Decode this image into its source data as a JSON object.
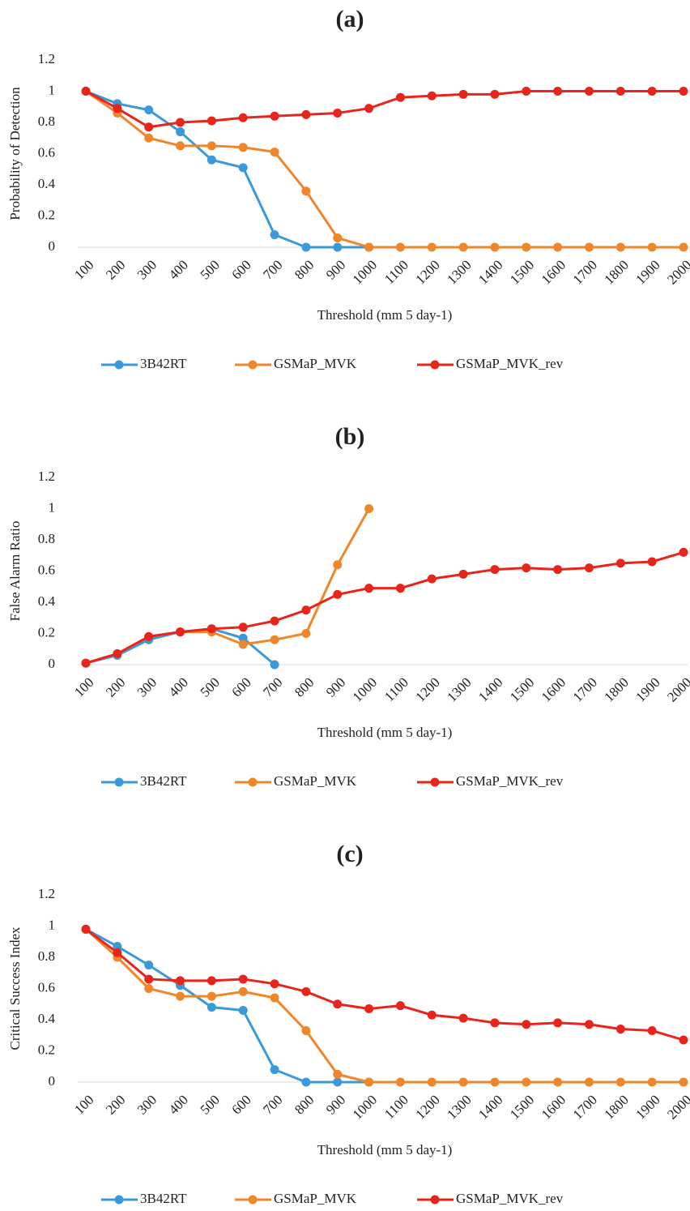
{
  "chart_data": [
    {
      "type": "line",
      "title": "(a)",
      "x_label": "Threshold (mm 5 day-1)",
      "y_label": "Probability of Detection",
      "categories": [
        "100",
        "200",
        "300",
        "400",
        "500",
        "600",
        "700",
        "800",
        "900",
        "1000",
        "1100",
        "1200",
        "1300",
        "1400",
        "1500",
        "1600",
        "1700",
        "1800",
        "1900",
        "2000"
      ],
      "ylim": [
        0,
        1.2
      ],
      "yticks": [
        0,
        0.2,
        0.4,
        0.6,
        0.8,
        1,
        1.2
      ],
      "grid": false,
      "series": [
        {
          "name": "3B42RT",
          "color": "#3a9ad9",
          "values": [
            1,
            0.92,
            0.88,
            0.74,
            0.56,
            0.51,
            0.08,
            0,
            0,
            0,
            null,
            null,
            null,
            null,
            null,
            null,
            null,
            null,
            null,
            null
          ]
        },
        {
          "name": "GSMaP_MVK",
          "color": "#f0862a",
          "values": [
            1,
            0.86,
            0.7,
            0.65,
            0.65,
            0.64,
            0.61,
            0.36,
            0.06,
            0,
            0,
            0,
            0,
            0,
            0,
            0,
            0,
            0,
            0,
            0
          ]
        },
        {
          "name": "GSMaP_MVK_rev",
          "color": "#e8251b",
          "values": [
            1,
            0.89,
            0.77,
            0.8,
            0.81,
            0.83,
            0.84,
            0.85,
            0.86,
            0.89,
            0.96,
            0.97,
            0.98,
            0.98,
            1,
            1,
            1,
            1,
            1,
            1
          ]
        }
      ]
    },
    {
      "type": "line",
      "title": "(b)",
      "x_label": "Threshold (mm 5 day-1)",
      "y_label": "False Alarm Ratio",
      "categories": [
        "100",
        "200",
        "300",
        "400",
        "500",
        "600",
        "700",
        "800",
        "900",
        "1000",
        "1100",
        "1200",
        "1300",
        "1400",
        "1500",
        "1600",
        "1700",
        "1800",
        "1900",
        "2000"
      ],
      "ylim": [
        0,
        1.2
      ],
      "yticks": [
        0,
        0.2,
        0.4,
        0.6,
        0.8,
        1,
        1.2
      ],
      "grid": false,
      "series": [
        {
          "name": "3B42RT",
          "color": "#3a9ad9",
          "values": [
            0.01,
            0.06,
            0.16,
            0.21,
            0.23,
            0.17,
            0,
            null,
            null,
            null,
            null,
            null,
            null,
            null,
            null,
            null,
            null,
            null,
            null,
            null
          ]
        },
        {
          "name": "GSMaP_MVK",
          "color": "#f0862a",
          "values": [
            0.01,
            0.07,
            0.18,
            0.21,
            0.21,
            0.13,
            0.16,
            0.2,
            0.64,
            1.0,
            null,
            null,
            null,
            null,
            null,
            null,
            null,
            null,
            null,
            null
          ]
        },
        {
          "name": "GSMaP_MVK_rev",
          "color": "#e8251b",
          "values": [
            0.01,
            0.07,
            0.18,
            0.21,
            0.23,
            0.24,
            0.28,
            0.35,
            0.45,
            0.49,
            0.49,
            0.55,
            0.58,
            0.61,
            0.62,
            0.61,
            0.62,
            0.65,
            0.66,
            0.72
          ]
        }
      ]
    },
    {
      "type": "line",
      "title": "(c)",
      "x_label": "Threshold (mm 5 day-1)",
      "y_label": "Critical Success Index",
      "categories": [
        "100",
        "200",
        "300",
        "400",
        "500",
        "600",
        "700",
        "800",
        "900",
        "1000",
        "1100",
        "1200",
        "1300",
        "1400",
        "1500",
        "1600",
        "1700",
        "1800",
        "1900",
        "2000"
      ],
      "ylim": [
        0,
        1.2
      ],
      "yticks": [
        0,
        0.2,
        0.4,
        0.6,
        0.8,
        1,
        1.2
      ],
      "grid": false,
      "series": [
        {
          "name": "3B42RT",
          "color": "#3a9ad9",
          "values": [
            0.98,
            0.87,
            0.75,
            0.62,
            0.48,
            0.46,
            0.08,
            0,
            0,
            0,
            null,
            null,
            null,
            null,
            null,
            null,
            null,
            null,
            null,
            null
          ]
        },
        {
          "name": "GSMaP_MVK",
          "color": "#f0862a",
          "values": [
            0.98,
            0.8,
            0.6,
            0.55,
            0.55,
            0.58,
            0.54,
            0.33,
            0.05,
            0,
            0,
            0,
            0,
            0,
            0,
            0,
            0,
            0,
            0,
            0
          ]
        },
        {
          "name": "GSMaP_MVK_rev",
          "color": "#e8251b",
          "values": [
            0.98,
            0.83,
            0.66,
            0.65,
            0.65,
            0.66,
            0.63,
            0.58,
            0.5,
            0.47,
            0.49,
            0.43,
            0.41,
            0.38,
            0.37,
            0.38,
            0.37,
            0.34,
            0.33,
            0.27
          ]
        }
      ]
    }
  ]
}
